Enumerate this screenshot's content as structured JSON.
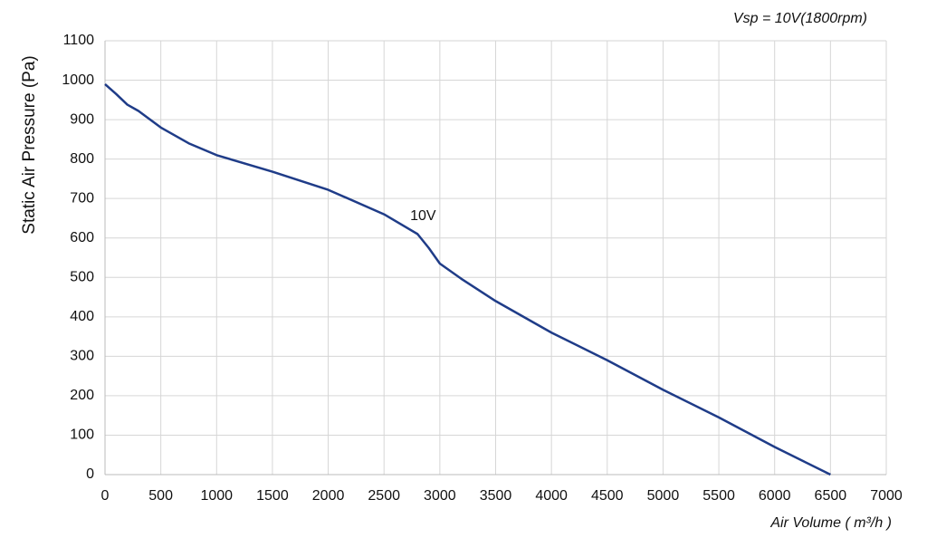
{
  "chart_data": {
    "type": "line",
    "title": "Vsp = 10V(1800rpm)",
    "x_label": "Air Volume ( m³/h )",
    "y_label": "Static Air Pressure  (Pa)",
    "x": [
      0,
      100,
      200,
      300,
      500,
      750,
      1000,
      1500,
      2000,
      2500,
      2800,
      2900,
      3000,
      3200,
      3500,
      4000,
      4500,
      5000,
      5500,
      6000,
      6500
    ],
    "series": [
      {
        "name": "10V",
        "color": "#1f3c88",
        "values": [
          990,
          965,
          938,
          922,
          880,
          840,
          810,
          768,
          722,
          660,
          610,
          575,
          535,
          495,
          440,
          360,
          290,
          215,
          145,
          70,
          0
        ]
      }
    ],
    "annotations": [
      {
        "text": "10V",
        "x": 2850,
        "y": 655
      }
    ],
    "xlim": [
      0,
      7000
    ],
    "xticks": [
      0,
      500,
      1000,
      1500,
      2000,
      2500,
      3000,
      3500,
      4000,
      4500,
      5000,
      5500,
      6000,
      6500,
      7000
    ],
    "ylim": [
      0,
      1100
    ],
    "yticks": [
      0,
      100,
      200,
      300,
      400,
      500,
      600,
      700,
      800,
      900,
      1000,
      1100
    ],
    "grid": true
  }
}
